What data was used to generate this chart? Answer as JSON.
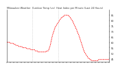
{
  "title": "Milwaukee Weather  Outdoor Temp (vs)  Heat Index per Minute (Last 24 Hours)",
  "background_color": "#ffffff",
  "line_color": "#ff0000",
  "grid_color": "#aaaaaa",
  "ylim": [
    42,
    90
  ],
  "xlim": [
    0,
    144
  ],
  "vlines": [
    36,
    72
  ],
  "ytick_vals": [
    85,
    80,
    75,
    70,
    65,
    60,
    55,
    50,
    45
  ],
  "x": [
    0,
    1,
    2,
    3,
    4,
    5,
    6,
    7,
    8,
    9,
    10,
    11,
    12,
    13,
    14,
    15,
    16,
    17,
    18,
    19,
    20,
    21,
    22,
    23,
    24,
    25,
    26,
    27,
    28,
    29,
    30,
    31,
    32,
    33,
    34,
    35,
    36,
    37,
    38,
    39,
    40,
    41,
    42,
    43,
    44,
    45,
    46,
    47,
    48,
    49,
    50,
    51,
    52,
    53,
    54,
    55,
    56,
    57,
    58,
    59,
    60,
    61,
    62,
    63,
    64,
    65,
    66,
    67,
    68,
    69,
    70,
    71,
    72,
    73,
    74,
    75,
    76,
    77,
    78,
    79,
    80,
    81,
    82,
    83,
    84,
    85,
    86,
    87,
    88,
    89,
    90,
    91,
    92,
    93,
    94,
    95,
    96,
    97,
    98,
    99,
    100,
    101,
    102,
    103,
    104,
    105,
    106,
    107,
    108,
    109,
    110,
    111,
    112,
    113,
    114,
    115,
    116,
    117,
    118,
    119,
    120,
    121,
    122,
    123,
    124,
    125,
    126,
    127,
    128,
    129,
    130,
    131,
    132,
    133,
    134,
    135,
    136,
    137,
    138,
    139,
    140,
    141,
    142,
    143,
    144
  ],
  "y": [
    60,
    60,
    60,
    60,
    60,
    59,
    59,
    59,
    59,
    59,
    58,
    58,
    58,
    57,
    57,
    57,
    57,
    56,
    56,
    56,
    56,
    56,
    55,
    55,
    55,
    55,
    55,
    55,
    54,
    54,
    54,
    54,
    54,
    54,
    53,
    53,
    53,
    53,
    53,
    53,
    52,
    52,
    52,
    52,
    51,
    51,
    51,
    51,
    51,
    51,
    51,
    51,
    51,
    51,
    51,
    51,
    52,
    52,
    52,
    53,
    55,
    57,
    60,
    63,
    66,
    68,
    70,
    72,
    74,
    75,
    76,
    77,
    78,
    79,
    80,
    81,
    82,
    83,
    83,
    84,
    84,
    85,
    85,
    85,
    85,
    85,
    85,
    84,
    84,
    83,
    82,
    81,
    80,
    79,
    77,
    76,
    75,
    73,
    72,
    70,
    68,
    67,
    65,
    63,
    61,
    59,
    57,
    55,
    53,
    51,
    50,
    49,
    48,
    47,
    46,
    45,
    45,
    44,
    44,
    43,
    43,
    43,
    43,
    43,
    43,
    43,
    43,
    43,
    43,
    44,
    44,
    44,
    44,
    44,
    44,
    44,
    44,
    44,
    44,
    44,
    44,
    44,
    44,
    44,
    44
  ]
}
